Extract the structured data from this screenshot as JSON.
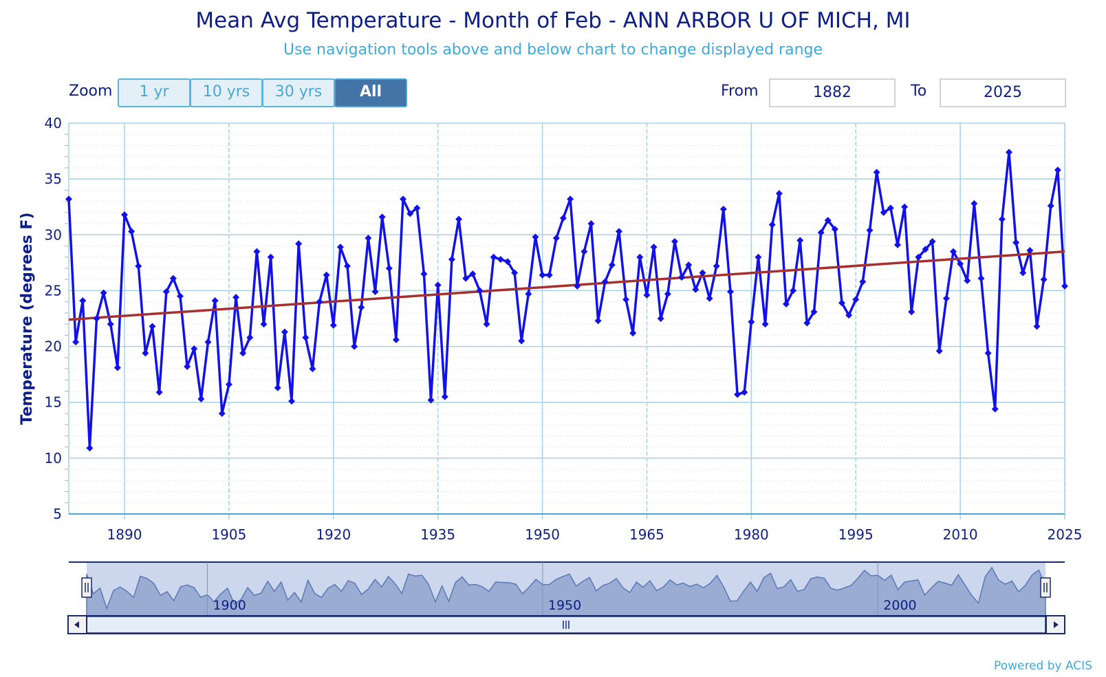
{
  "header": {
    "title": "Mean Avg Temperature - Month of Feb - ANN ARBOR U OF MICH, MI",
    "subtitle": "Use navigation tools above and below chart to change displayed range"
  },
  "zoom": {
    "label": "Zoom",
    "buttons": [
      "1 yr",
      "10 yrs",
      "30 yrs",
      "All"
    ],
    "active": "All"
  },
  "range": {
    "from_label": "From",
    "from_value": "1882",
    "to_label": "To",
    "to_value": "2025"
  },
  "footer": {
    "credit": "Powered by ACIS"
  },
  "colors": {
    "series": "#1212e8",
    "trend": "#a53030",
    "grid": "#a8d0e6",
    "axis_text": "#0d1f86",
    "navigator_fill": "#9aacd2"
  },
  "chart_data": {
    "type": "line",
    "title": "Mean Avg Temperature - Month of Feb - ANN ARBOR U OF MICH, MI",
    "ylabel": "Temperature (degrees F)",
    "xlabel": "",
    "xlim": [
      1882,
      2025
    ],
    "ylim": [
      5,
      40
    ],
    "yticks": [
      5,
      10,
      15,
      20,
      25,
      30,
      35,
      40
    ],
    "xticks": [
      1890,
      1905,
      1920,
      1935,
      1950,
      1965,
      1980,
      1995,
      2010,
      2025
    ],
    "grid": true,
    "series": [
      {
        "x": [
          1882,
          1883,
          1884,
          1885,
          1886,
          1887,
          1888,
          1889,
          1890,
          1891,
          1892,
          1893,
          1894,
          1895,
          1896,
          1897,
          1898,
          1899,
          1900,
          1901,
          1902,
          1903,
          1904,
          1905,
          1906,
          1907,
          1908,
          1909,
          1910,
          1911,
          1912,
          1913,
          1914,
          1915,
          1916,
          1917,
          1918,
          1919,
          1920,
          1921,
          1922,
          1923,
          1924,
          1925,
          1926,
          1927,
          1928,
          1929,
          1930,
          1931,
          1932,
          1933,
          1934,
          1935,
          1936,
          1937,
          1938,
          1939,
          1940,
          1941,
          1942,
          1943,
          1944,
          1945,
          1946,
          1947,
          1948,
          1949,
          1950,
          1951,
          1952,
          1953,
          1954,
          1955,
          1956,
          1957,
          1958,
          1959,
          1960,
          1961,
          1962,
          1963,
          1964,
          1965,
          1966,
          1967,
          1968,
          1969,
          1970,
          1971,
          1972,
          1973,
          1974,
          1975,
          1976,
          1977,
          1978,
          1979,
          1980,
          1981,
          1982,
          1983,
          1984,
          1985,
          1986,
          1987,
          1988,
          1989,
          1990,
          1991,
          1992,
          1993,
          1994,
          1995,
          1996,
          1997,
          1998,
          1999,
          2000,
          2001,
          2002,
          2003,
          2004,
          2005,
          2006,
          2007,
          2008,
          2009,
          2010,
          2011,
          2012,
          2013,
          2014,
          2015,
          2016,
          2017,
          2018,
          2019,
          2020,
          2021,
          2022,
          2023,
          2024,
          2025
        ],
        "values": [
          33.2,
          20.4,
          24.1,
          10.9,
          22.5,
          24.8,
          22.0,
          18.1,
          31.8,
          30.3,
          27.2,
          19.4,
          21.8,
          15.9,
          24.9,
          26.1,
          24.5,
          18.2,
          19.8,
          15.3,
          20.4,
          24.1,
          14.0,
          16.6,
          24.4,
          19.4,
          20.8,
          28.5,
          22.0,
          28.0,
          16.3,
          21.3,
          15.1,
          29.2,
          20.8,
          18.0,
          24.0,
          26.4,
          21.9,
          28.9,
          27.2,
          20.0,
          23.5,
          29.7,
          24.9,
          31.6,
          27.0,
          20.6,
          33.2,
          31.9,
          32.4,
          26.5,
          15.2,
          25.5,
          15.5,
          27.8,
          31.4,
          26.1,
          26.5,
          25.0,
          22.0,
          28.0,
          27.8,
          27.6,
          26.6,
          20.5,
          24.7,
          29.8,
          26.4,
          26.4,
          29.7,
          31.5,
          33.2,
          25.4,
          28.5,
          31.0,
          22.3,
          25.8,
          27.3,
          30.3,
          24.2,
          21.2,
          28.0,
          24.6,
          28.9,
          22.5,
          24.7,
          29.4,
          26.2,
          27.3,
          25.1,
          26.6,
          24.3,
          27.2,
          32.3,
          24.9,
          15.7,
          15.9,
          22.2,
          28.0,
          22.0,
          30.9,
          33.7,
          23.8,
          25.0,
          29.5,
          22.1,
          23.1,
          30.2,
          31.3,
          30.5,
          23.9,
          22.8,
          24.2,
          25.8,
          30.4,
          35.6,
          32.0,
          32.4,
          29.1,
          32.5,
          23.1,
          28.0,
          28.7,
          29.4,
          19.6,
          24.3,
          28.5,
          27.4,
          25.9,
          32.8,
          26.1,
          19.4,
          14.4,
          31.4,
          37.4,
          29.3,
          26.6,
          28.6,
          21.8,
          26.0,
          32.6,
          35.8,
          25.4
        ]
      }
    ],
    "trend_line": {
      "x": [
        1882,
        2025
      ],
      "y": [
        22.4,
        28.5
      ]
    },
    "navigator": {
      "labels": [
        "1900",
        "1950",
        "2000"
      ]
    }
  }
}
